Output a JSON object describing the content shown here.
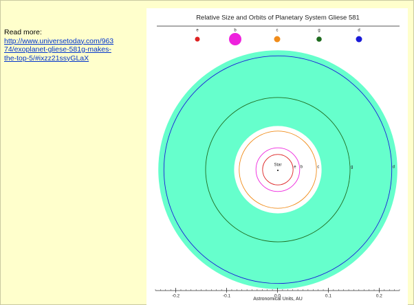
{
  "note": {
    "heading": "Read more:",
    "link_lines": [
      "http://www.universetoday.com/963",
      "74/exoplanet-gliese-581g-makes-",
      "the-top-5/#ixzz21ssyGLaX"
    ]
  },
  "diagram": {
    "title": "Relative Size and Orbits of Planetary System Gliese 581",
    "star": "Star",
    "planets": [
      {
        "label": "e",
        "color": "#dd2222",
        "orbit": 0.03
      },
      {
        "label": "b",
        "color": "#ee22dd",
        "orbit": 0.043
      },
      {
        "label": "c",
        "color": "#f08c1a",
        "orbit": 0.076
      },
      {
        "label": "g",
        "color": "#1e6b1e",
        "orbit": 0.142
      },
      {
        "label": "d",
        "color": "#1a1ad8",
        "orbit": 0.224
      }
    ],
    "habitable_zone": [
      0.086,
      0.235
    ],
    "xlim": [
      -0.24,
      0.24
    ],
    "xticks": [
      -0.2,
      -0.1,
      {
        "value": 0,
        "label": "0.0"
      },
      0.1,
      0.2
    ],
    "xlabel": "Astronomical Units, AU"
  }
}
